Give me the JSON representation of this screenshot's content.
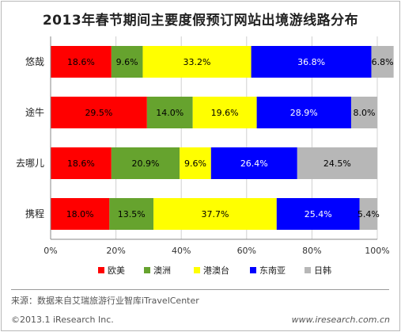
{
  "chart_data": {
    "type": "bar",
    "orientation": "horizontal",
    "stacked": "percent",
    "title": "2013年春节期间主要度假预订网站出境游线路分布",
    "categories": [
      "悠哉",
      "途牛",
      "去哪儿",
      "携程"
    ],
    "series": [
      {
        "name": "欧美",
        "color": "#ff0000",
        "values": [
          18.6,
          29.5,
          18.6,
          18.0
        ],
        "labels": [
          "18.6%",
          "29.5%",
          "18.6%",
          "18.0%"
        ]
      },
      {
        "name": "澳洲",
        "color": "#66a32e",
        "values": [
          9.6,
          14.0,
          20.9,
          13.5
        ],
        "labels": [
          "9.6%",
          "14.0%",
          "20.9%",
          "13.5%"
        ]
      },
      {
        "name": "港澳台",
        "color": "#ffff00",
        "values": [
          33.2,
          19.6,
          9.6,
          37.7
        ],
        "labels": [
          "33.2%",
          "19.6%",
          "9.6%",
          "37.7%"
        ]
      },
      {
        "name": "东南亚",
        "color": "#0000ff",
        "values": [
          36.8,
          28.9,
          26.4,
          25.4
        ],
        "labels": [
          "36.8%",
          "28.9%",
          "26.4%",
          "25.4%"
        ]
      },
      {
        "name": "日韩",
        "color": "#b7b7b7",
        "values": [
          6.8,
          8.0,
          24.5,
          5.4
        ],
        "labels": [
          "6.8%",
          "8.0%",
          "24.5%",
          "5.4%"
        ]
      }
    ],
    "xlim": [
      0,
      100
    ],
    "xticks": [
      "0%",
      "20%",
      "40%",
      "60%",
      "80%",
      "100%"
    ],
    "grid": true,
    "legend_position": "bottom"
  },
  "footer": {
    "source": "来源：数据来自艾瑞旅游行业智库iTravelCenter",
    "copyright": "©2013.1 iResearch Inc.",
    "website": "www.iresearch.com.cn"
  }
}
